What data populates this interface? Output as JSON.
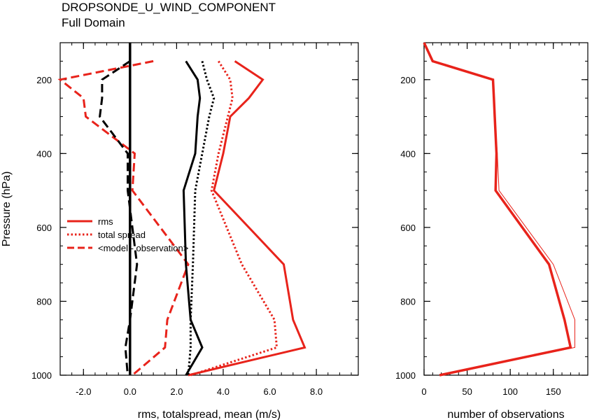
{
  "title": "DROPSONDE_U_WIND_COMPONENT",
  "subtitle": "Full Domain",
  "chart_data": [
    {
      "type": "line",
      "xlabel": "rms, totalspread, mean (m/s)",
      "ylabel": "Pressure (hPa)",
      "xlim": [
        -3.0,
        9.8
      ],
      "ylim": [
        1000,
        100
      ],
      "yscale": "linear-inverted",
      "xticks": [
        "-2.0",
        "0.0",
        "2.0",
        "4.0",
        "6.0",
        "8.0"
      ],
      "yticks": [
        "200",
        "400",
        "600",
        "800",
        "1000"
      ],
      "legend_position": "left-middle",
      "series": [
        {
          "name": "rms",
          "style": "solid",
          "color": "#e8231b",
          "x": [
            4.5,
            5.7,
            5.1,
            4.3,
            4.0,
            3.6,
            6.6,
            7.0,
            7.5,
            2.5
          ],
          "y": [
            150,
            200,
            250,
            300,
            400,
            500,
            700,
            850,
            925,
            1000
          ]
        },
        {
          "name": "total spread",
          "style": "dotted",
          "color": "#e8231b",
          "x": [
            3.8,
            4.3,
            4.4,
            4.2,
            3.8,
            3.5,
            4.8,
            6.2,
            6.3,
            2.6
          ],
          "y": [
            150,
            200,
            250,
            300,
            400,
            500,
            700,
            850,
            925,
            1000
          ]
        },
        {
          "name": "<model - observation>",
          "style": "dashed",
          "color": "#e8231b",
          "x": [
            1.0,
            -3.0,
            -2.0,
            -1.9,
            0.2,
            0.1,
            2.5,
            1.6,
            1.5,
            0.1
          ],
          "y": [
            150,
            200,
            250,
            300,
            400,
            500,
            700,
            850,
            925,
            1000
          ]
        },
        {
          "style": "solid",
          "color": "#000000",
          "x": [
            2.4,
            2.9,
            3.0,
            2.9,
            2.8,
            2.3,
            2.4,
            2.6,
            3.1,
            2.4
          ],
          "y": [
            150,
            200,
            250,
            300,
            400,
            500,
            700,
            850,
            925,
            1000
          ]
        },
        {
          "style": "dotted",
          "color": "#000000",
          "x": [
            3.1,
            3.3,
            3.6,
            3.4,
            3.1,
            2.8,
            2.7,
            2.6,
            2.6,
            2.5
          ],
          "y": [
            150,
            200,
            250,
            300,
            400,
            500,
            700,
            850,
            925,
            1000
          ]
        },
        {
          "style": "dashed",
          "color": "#000000",
          "x": [
            0.0,
            -1.2,
            -1.2,
            -1.3,
            -0.1,
            -0.1,
            0.3,
            0.0,
            -0.2,
            -0.1
          ],
          "y": [
            150,
            200,
            250,
            300,
            400,
            500,
            700,
            850,
            925,
            1000
          ]
        },
        {
          "style": "solid-thick",
          "color": "#000000",
          "x": [
            0.0,
            0.0
          ],
          "y": [
            100,
            1000
          ]
        }
      ]
    },
    {
      "type": "line",
      "xlabel": "number of observations",
      "ylabel": "",
      "xlim": [
        0,
        190
      ],
      "ylim": [
        1000,
        100
      ],
      "yscale": "linear-inverted",
      "xticks": [
        "0",
        "50",
        "100",
        "150"
      ],
      "yticks": [
        "200",
        "400",
        "600",
        "800",
        "1000"
      ],
      "series": [
        {
          "style": "thick",
          "color": "#e8231b",
          "x": [
            0,
            10,
            80,
            81,
            82,
            84,
            83,
            145,
            163,
            170,
            18
          ],
          "y": [
            100,
            150,
            200,
            250,
            300,
            400,
            500,
            700,
            850,
            925,
            1000
          ]
        },
        {
          "style": "thin",
          "color": "#e8231b",
          "x": [
            0,
            10,
            80,
            81,
            82,
            85,
            87,
            150,
            175,
            175,
            20
          ],
          "y": [
            100,
            150,
            200,
            250,
            300,
            400,
            500,
            700,
            850,
            925,
            1000
          ]
        }
      ]
    }
  ]
}
